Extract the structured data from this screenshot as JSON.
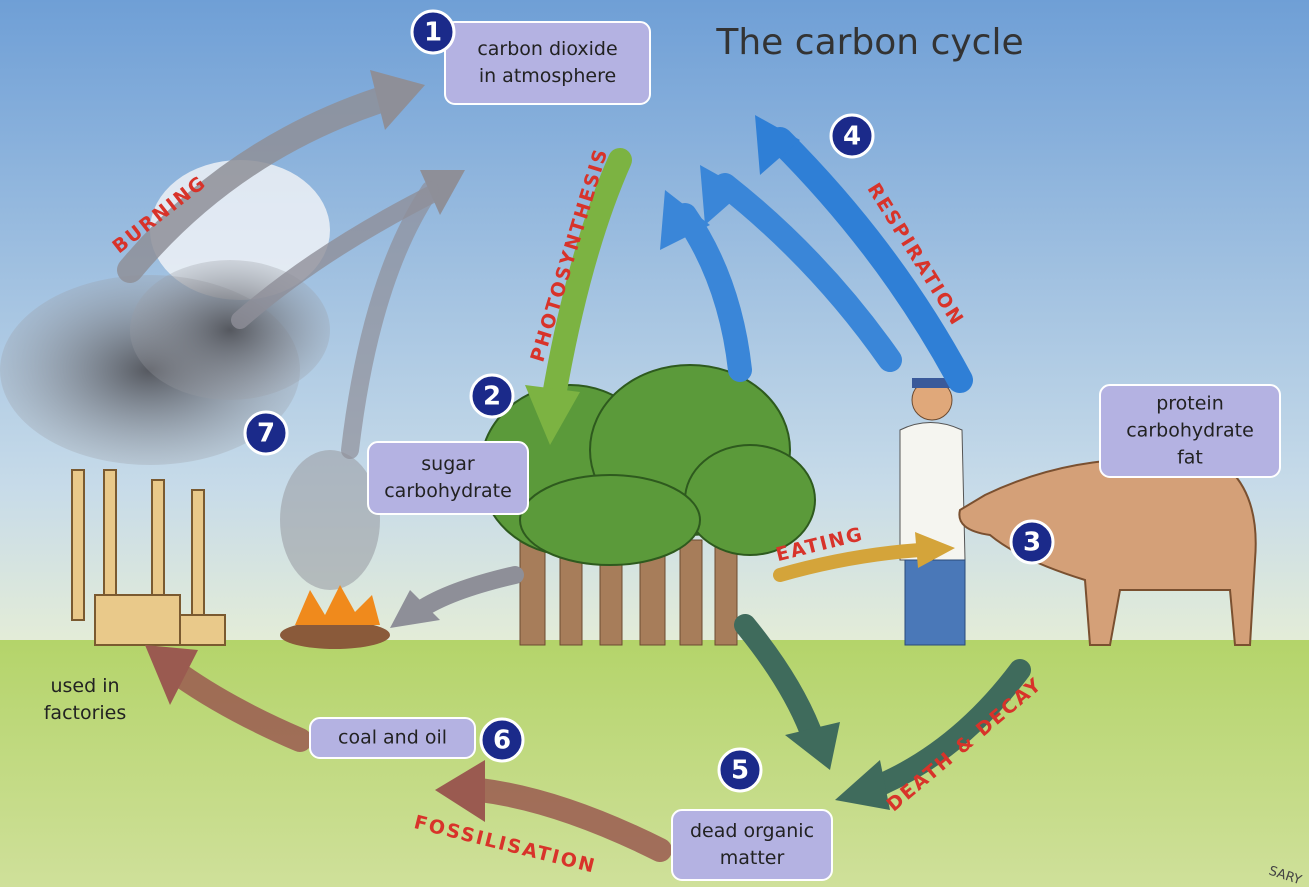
{
  "title": "The carbon cycle",
  "boxes": [
    {
      "lines": [
        "carbon dioxide",
        "in atmosphere"
      ]
    },
    {
      "lines": [
        "sugar",
        "carbohydrate"
      ]
    },
    {
      "lines": [
        "protein",
        "carbohydrate",
        "fat"
      ]
    },
    {
      "lines": [
        "coal and oil"
      ]
    },
    {
      "lines": [
        "dead organic",
        "matter"
      ]
    },
    {
      "lines": [
        "used in",
        "factories"
      ]
    }
  ],
  "badges": [
    "1",
    "2",
    "3",
    "4",
    "5",
    "6",
    "7"
  ],
  "processes": [
    "BURNING",
    "PHOTOSYNTHESIS",
    "RESPIRATION",
    "EATING",
    "DEATH & DECAY",
    "FOSSILISATION"
  ],
  "corner_text": "SARY"
}
